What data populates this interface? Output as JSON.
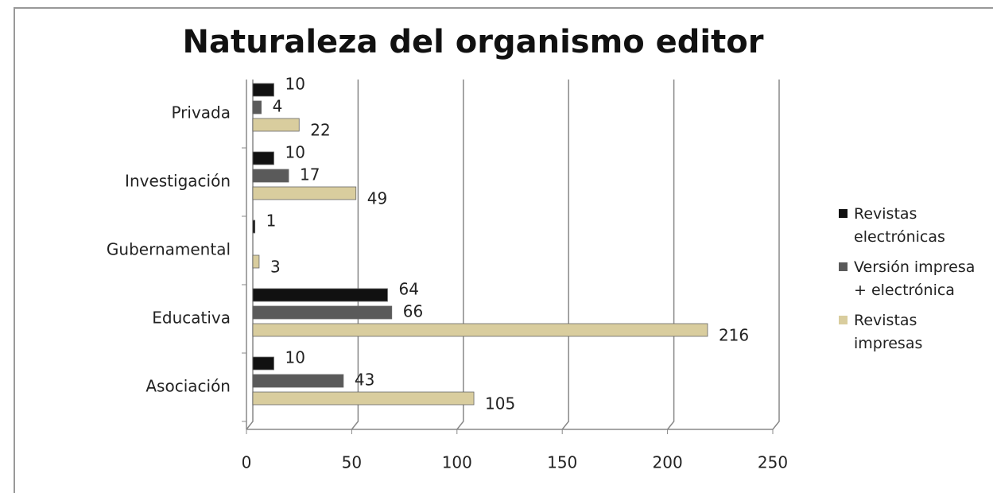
{
  "chart_data": {
    "type": "bar",
    "orientation": "horizontal",
    "title": "Naturaleza del organismo editor",
    "categories": [
      "Asociación",
      "Educativa",
      "Gubernamental",
      "Investigación",
      "Privada"
    ],
    "series": [
      {
        "name": "Revistas electrónicas",
        "color": "#111111",
        "values": [
          10,
          64,
          1,
          10,
          10
        ]
      },
      {
        "name": "Versión impresa + electrónica",
        "color": "#5a5a5a",
        "values": [
          43,
          66,
          null,
          17,
          4
        ]
      },
      {
        "name": "Revistas impresas",
        "color": "#d9cd9e",
        "values": [
          105,
          216,
          3,
          49,
          22
        ]
      }
    ],
    "xlim": [
      0,
      250
    ],
    "xticks": [
      0,
      50,
      100,
      150,
      200,
      250
    ],
    "grid": true,
    "legend": "right"
  }
}
